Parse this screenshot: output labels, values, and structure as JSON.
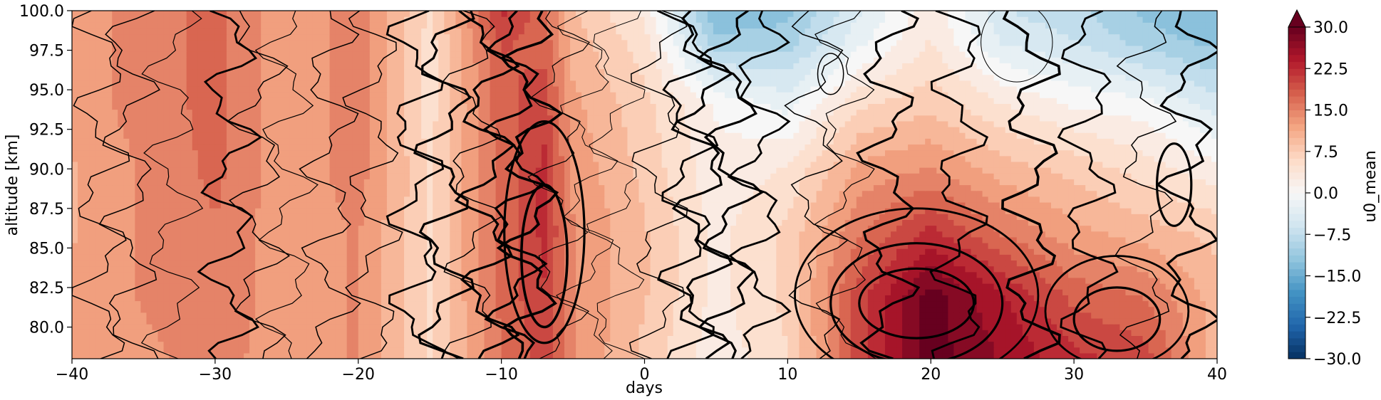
{
  "chart_data": {
    "type": "heatmap",
    "xlabel": "days",
    "ylabel": "altitude [km]",
    "xlim": [
      -40,
      40
    ],
    "ylim": [
      78,
      100
    ],
    "xticks": [
      -40,
      -30,
      -20,
      -10,
      0,
      10,
      20,
      30,
      40
    ],
    "xtick_labels": [
      "−40",
      "−30",
      "−20",
      "−10",
      "0",
      "10",
      "20",
      "30",
      "40"
    ],
    "yticks": [
      80.0,
      82.5,
      85.0,
      87.5,
      90.0,
      92.5,
      95.0,
      97.5,
      100.0
    ],
    "ytick_labels": [
      "80.0",
      "82.5",
      "85.0",
      "87.5",
      "90.0",
      "92.5",
      "95.0",
      "97.5",
      "100.0"
    ],
    "colorbar": {
      "label": "u0_mean",
      "min": -30,
      "max": 30,
      "ticks": [
        -30,
        -22.5,
        -15,
        -7.5,
        0,
        7.5,
        15,
        22.5,
        30
      ],
      "tick_labels": [
        "−30.0",
        "−22.5",
        "−15.0",
        "−7.5",
        "0.0",
        "7.5",
        "15.0",
        "22.5",
        "30.0"
      ],
      "extend": "max",
      "colormap": "RdBu_r",
      "colors": [
        "#053061",
        "#2166ac",
        "#4393c3",
        "#92c5de",
        "#d1e5f0",
        "#f7f7f7",
        "#fddbc7",
        "#f4a582",
        "#d6604d",
        "#b2182b",
        "#67001f"
      ]
    },
    "field_samples": {
      "description": "approximate u0_mean values sampled on a day/altitude grid",
      "x": [
        -40,
        -35,
        -30,
        -25,
        -20,
        -15,
        -10,
        -7,
        -5,
        0,
        5,
        10,
        15,
        20,
        25,
        30,
        35,
        40
      ],
      "y": [
        78,
        82,
        86,
        90,
        94,
        98,
        100
      ],
      "z": [
        [
          12,
          13,
          15,
          12,
          14,
          6,
          16,
          20,
          14,
          8,
          2,
          6,
          20,
          30,
          26,
          22,
          20,
          10
        ],
        [
          12,
          14,
          16,
          12,
          14,
          6,
          17,
          21,
          14,
          9,
          3,
          7,
          20,
          30,
          24,
          18,
          16,
          10
        ],
        [
          11,
          14,
          16,
          12,
          14,
          6,
          17,
          22,
          14,
          9,
          3,
          7,
          16,
          22,
          16,
          12,
          10,
          8
        ],
        [
          11,
          14,
          17,
          12,
          15,
          6,
          17,
          22,
          13,
          8,
          2,
          4,
          12,
          14,
          10,
          8,
          5,
          2
        ],
        [
          12,
          15,
          17,
          12,
          15,
          5,
          18,
          20,
          12,
          7,
          1,
          -2,
          6,
          8,
          4,
          1,
          0,
          -5
        ],
        [
          12,
          15,
          17,
          12,
          15,
          5,
          19,
          18,
          10,
          5,
          -10,
          -10,
          -2,
          4,
          -4,
          -6,
          -10,
          -12
        ],
        [
          12,
          15,
          17,
          12,
          15,
          6,
          22,
          17,
          9,
          3,
          -14,
          -12,
          -4,
          3,
          -6,
          -8,
          -12,
          -14
        ]
      ]
    },
    "contours": {
      "color": "#000000",
      "description": "black line contours overlaid on the filled field"
    }
  }
}
